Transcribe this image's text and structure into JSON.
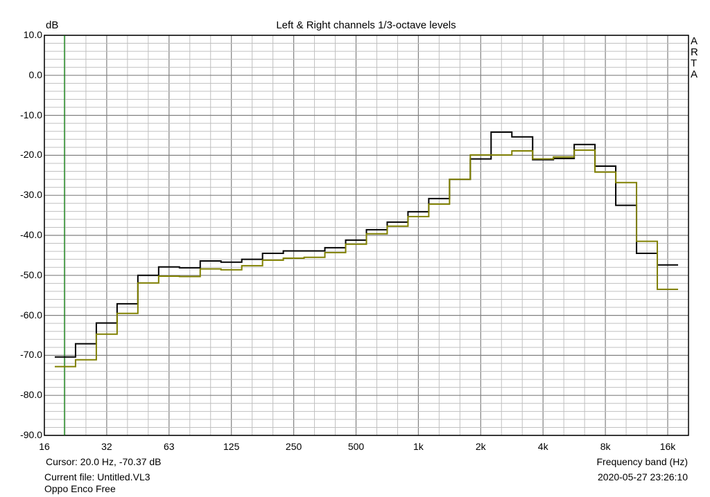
{
  "chart_data": {
    "type": "line",
    "title": "Left & Right channels 1/3-octave levels",
    "ylabel": "dB",
    "xlabel": "Frequency band (Hz)",
    "ylim": [
      -90,
      10
    ],
    "xscale": "log",
    "xlim_hz": [
      16,
      20000
    ],
    "y_ticks": [
      "10.0",
      "0.0",
      "-10.0",
      "-20.0",
      "-30.0",
      "-40.0",
      "-50.0",
      "-60.0",
      "-70.0",
      "-80.0",
      "-90.0"
    ],
    "x_ticks": [
      "16",
      "32",
      "63",
      "125",
      "250",
      "500",
      "1k",
      "2k",
      "4k",
      "8k",
      "16k"
    ],
    "grid": true,
    "bands": [
      "20",
      "25",
      "31.5",
      "40",
      "50",
      "63",
      "80",
      "100",
      "125",
      "160",
      "200",
      "250",
      "315",
      "400",
      "500",
      "630",
      "800",
      "1k",
      "1.25k",
      "1.6k",
      "2k",
      "2.5k",
      "3.15k",
      "4k",
      "5k",
      "6.3k",
      "8k",
      "10k",
      "12.5k",
      "16k"
    ],
    "series": [
      {
        "name": "Left",
        "color": "#000000",
        "values": [
          -70.4,
          -67.1,
          -61.9,
          -57.1,
          -50.0,
          -47.9,
          -48.1,
          -46.4,
          -46.7,
          -46.0,
          -44.5,
          -43.9,
          -43.9,
          -43.1,
          -41.2,
          -38.6,
          -36.7,
          -34.1,
          -30.8,
          -26.0,
          -20.9,
          -14.2,
          -15.4,
          -21.1,
          -20.8,
          -17.3,
          -22.7,
          -32.5,
          -44.5,
          -47.4
        ]
      },
      {
        "name": "Right",
        "color": "#808000",
        "values": [
          -72.8,
          -71.1,
          -64.7,
          -59.5,
          -51.9,
          -50.2,
          -50.3,
          -48.4,
          -48.6,
          -47.6,
          -46.2,
          -45.7,
          -45.5,
          -44.3,
          -42.2,
          -39.6,
          -37.7,
          -35.3,
          -32.2,
          -26.0,
          -19.9,
          -19.9,
          -18.9,
          -20.9,
          -20.4,
          -18.7,
          -24.2,
          -26.8,
          -41.5,
          -53.5
        ]
      }
    ],
    "cursor_hz": 20.0,
    "cursor_color": "#008000"
  },
  "watermark": "ARTA",
  "footer": {
    "cursor": "Cursor:    20.0 Hz, -70.37 dB",
    "current_file": "Current file: Untitled.VL3",
    "device": "Oppo Enco Free",
    "timestamp": "2020-05-27   23:26:10"
  }
}
